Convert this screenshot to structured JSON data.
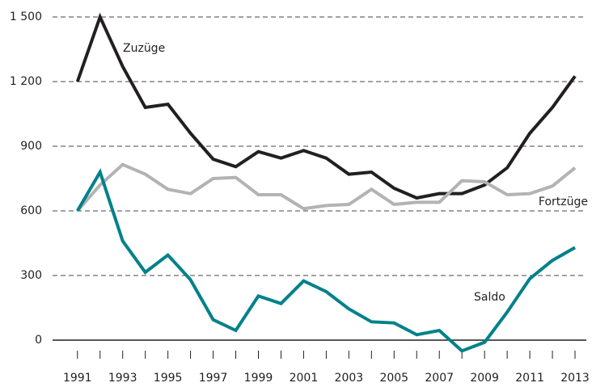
{
  "chart_data": {
    "type": "line",
    "x": [
      1991,
      1992,
      1993,
      1994,
      1995,
      1996,
      1997,
      1998,
      1999,
      2000,
      2001,
      2002,
      2003,
      2004,
      2005,
      2006,
      2007,
      2008,
      2009,
      2010,
      2011,
      2012,
      2013
    ],
    "series": [
      {
        "name": "Zuzüge",
        "color": "#231f20",
        "values": [
          1200,
          1500,
          1270,
          1080,
          1095,
          960,
          840,
          805,
          875,
          845,
          880,
          845,
          770,
          780,
          705,
          660,
          680,
          680,
          720,
          800,
          960,
          1080,
          1225
        ]
      },
      {
        "name": "Fortzüge",
        "color": "#b3b3b3",
        "values": [
          600,
          720,
          815,
          770,
          700,
          680,
          750,
          755,
          675,
          675,
          610,
          625,
          630,
          700,
          630,
          640,
          640,
          740,
          735,
          675,
          680,
          715,
          800
        ]
      },
      {
        "name": "Saldo",
        "color": "#00818a",
        "values": [
          600,
          780,
          460,
          315,
          395,
          280,
          95,
          45,
          205,
          170,
          275,
          225,
          145,
          85,
          80,
          25,
          45,
          -50,
          -10,
          130,
          285,
          370,
          430
        ]
      }
    ],
    "xlim": [
      1989.9,
      2013.5
    ],
    "xticks": [
      1991,
      1993,
      1995,
      1997,
      1999,
      2001,
      2003,
      2005,
      2007,
      2009,
      2011,
      2013
    ],
    "ylim": [
      -75,
      1500
    ],
    "yticks": [
      0,
      300,
      600,
      900,
      {
        "value": 1200,
        "label": "1 200"
      },
      {
        "value": 1500,
        "label": "1 500"
      }
    ],
    "grid": true
  }
}
